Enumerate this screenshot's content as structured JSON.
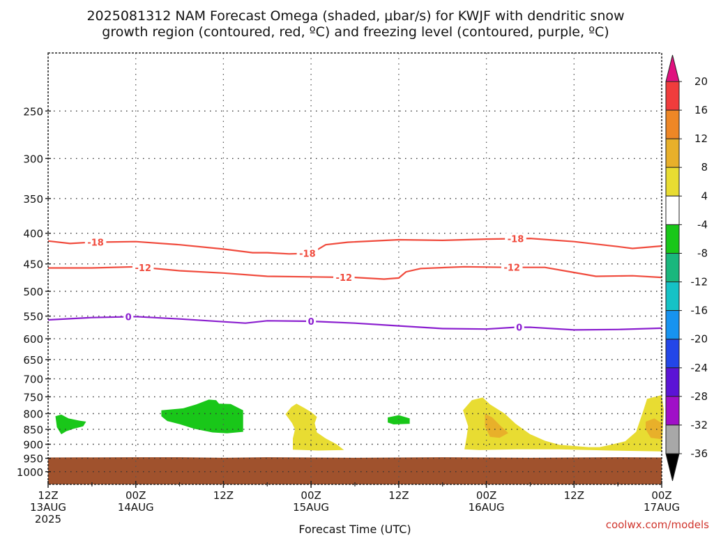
{
  "chart_data": {
    "type": "heatmap",
    "title_lines": [
      "2025081312 NAM Forecast Omega (shaded, μbar/s) for KWJF with dendritic snow",
      "growth region (contoured, red, ºC) and freezing level (contoured, purple, ºC)"
    ],
    "xlabel": "Forecast Time (UTC)",
    "credit": "coolwx.com/models",
    "x_unit": "hours after 2025-08-13 12Z",
    "xlim": [
      0,
      84
    ],
    "ylim": [
      1050,
      200
    ],
    "y_scale": "log",
    "x_ticks": [
      {
        "x": 0,
        "lines": [
          "12Z",
          "13AUG",
          "2025"
        ]
      },
      {
        "x": 12,
        "lines": [
          "00Z",
          "14AUG"
        ]
      },
      {
        "x": 24,
        "lines": [
          "12Z"
        ]
      },
      {
        "x": 36,
        "lines": [
          "00Z",
          "15AUG"
        ]
      },
      {
        "x": 48,
        "lines": [
          "12Z"
        ]
      },
      {
        "x": 60,
        "lines": [
          "00Z",
          "16AUG"
        ]
      },
      {
        "x": 72,
        "lines": [
          "12Z"
        ]
      },
      {
        "x": 84,
        "lines": [
          "00Z",
          "17AUG"
        ]
      }
    ],
    "x_minor_ticks": [
      6,
      18,
      30,
      42,
      54,
      66,
      78
    ],
    "y_ticks": [
      250,
      300,
      350,
      400,
      450,
      500,
      550,
      600,
      650,
      700,
      750,
      800,
      850,
      900,
      950,
      1000
    ],
    "grid": true,
    "colorbar": {
      "placement": "right",
      "labels": [
        "20",
        "16",
        "12",
        "8",
        "4",
        "-4",
        "-8",
        "-12",
        "-16",
        "-20",
        "-24",
        "-28",
        "-32",
        "-36"
      ],
      "bins": [
        {
          "from": 20,
          "to": null,
          "color": "#e0117f"
        },
        {
          "from": 16,
          "to": 20,
          "color": "#f03c3c"
        },
        {
          "from": 12,
          "to": 16,
          "color": "#ee8726"
        },
        {
          "from": 8,
          "to": 12,
          "color": "#e8b02a"
        },
        {
          "from": 4,
          "to": 8,
          "color": "#e8dc32"
        },
        {
          "from": -4,
          "to": 4,
          "color": "#ffffff"
        },
        {
          "from": -8,
          "to": -4,
          "color": "#19c719"
        },
        {
          "from": -12,
          "to": -8,
          "color": "#1ab77d"
        },
        {
          "from": -16,
          "to": -12,
          "color": "#15c2c6"
        },
        {
          "from": -20,
          "to": -16,
          "color": "#1793f0"
        },
        {
          "from": -24,
          "to": -20,
          "color": "#2346e8"
        },
        {
          "from": -28,
          "to": -24,
          "color": "#5b14d6"
        },
        {
          "from": -32,
          "to": -28,
          "color": "#a010c8"
        },
        {
          "from": -36,
          "to": -32,
          "color": "#a8a8a8"
        },
        {
          "from": null,
          "to": -36,
          "color": "#000000"
        }
      ]
    },
    "ground": {
      "color": "#a0522d",
      "top_p": [
        [
          0,
          947
        ],
        [
          12,
          946
        ],
        [
          18,
          946
        ],
        [
          24,
          948
        ],
        [
          30,
          946
        ],
        [
          36,
          947
        ],
        [
          42,
          948
        ],
        [
          48,
          947
        ],
        [
          54,
          946
        ],
        [
          60,
          947
        ],
        [
          66,
          948
        ],
        [
          72,
          947
        ],
        [
          78,
          946
        ],
        [
          84,
          947
        ]
      ]
    },
    "contours": [
      {
        "name": "-18",
        "kind": "dgz",
        "color": "#f04a3c",
        "label": "-18",
        "label_x": [
          6.5,
          35.5,
          64
        ],
        "points": [
          [
            0,
            412
          ],
          [
            3,
            416
          ],
          [
            6,
            414
          ],
          [
            12,
            413
          ],
          [
            18,
            418
          ],
          [
            24,
            425
          ],
          [
            28,
            431
          ],
          [
            30,
            431
          ],
          [
            33,
            433
          ],
          [
            36,
            432
          ],
          [
            37,
            425
          ],
          [
            38,
            418
          ],
          [
            41,
            414
          ],
          [
            48,
            410
          ],
          [
            54,
            411
          ],
          [
            60,
            409
          ],
          [
            66,
            408
          ],
          [
            72,
            413
          ],
          [
            78,
            421
          ],
          [
            80,
            424
          ],
          [
            84,
            420
          ]
        ]
      },
      {
        "name": "-12",
        "kind": "dgz",
        "color": "#f04a3c",
        "label": "-12",
        "label_x": [
          13,
          40.5,
          63.5
        ],
        "points": [
          [
            0,
            457
          ],
          [
            6,
            457
          ],
          [
            12,
            455
          ],
          [
            18,
            462
          ],
          [
            24,
            466
          ],
          [
            30,
            472
          ],
          [
            36,
            473
          ],
          [
            42,
            474
          ],
          [
            46,
            477
          ],
          [
            48,
            475
          ],
          [
            49,
            464
          ],
          [
            51,
            458
          ],
          [
            57,
            455
          ],
          [
            63,
            456
          ],
          [
            68,
            456
          ],
          [
            72,
            465
          ],
          [
            75,
            472
          ],
          [
            80,
            471
          ],
          [
            84,
            474
          ]
        ]
      },
      {
        "name": "0",
        "kind": "freezing",
        "color": "#8a1ecf",
        "label": "0",
        "label_x": [
          11,
          36,
          64.5
        ],
        "points": [
          [
            0,
            558
          ],
          [
            6,
            553
          ],
          [
            12,
            551
          ],
          [
            18,
            556
          ],
          [
            24,
            562
          ],
          [
            27,
            565
          ],
          [
            30,
            560
          ],
          [
            36,
            561
          ],
          [
            42,
            565
          ],
          [
            48,
            571
          ],
          [
            54,
            577
          ],
          [
            60,
            578
          ],
          [
            64,
            574
          ],
          [
            66,
            574
          ],
          [
            72,
            580
          ],
          [
            78,
            579
          ],
          [
            84,
            576
          ]
        ]
      }
    ],
    "omega_shaded": [
      {
        "value_bin": "-8 to -4",
        "color": "#19c719",
        "points": [
          [
            1,
            808
          ],
          [
            1.8,
            803
          ],
          [
            2.8,
            815
          ],
          [
            4.3,
            822
          ],
          [
            5.2,
            825
          ],
          [
            4.8,
            840
          ],
          [
            3.5,
            848
          ],
          [
            2.5,
            856
          ],
          [
            1.8,
            866
          ],
          [
            1.2,
            843
          ]
        ]
      },
      {
        "value_bin": "-8 to -4",
        "color": "#19c719",
        "points": [
          [
            15.5,
            790
          ],
          [
            18.5,
            784
          ],
          [
            20.3,
            772
          ],
          [
            22,
            758
          ],
          [
            23,
            760
          ],
          [
            23.4,
            770
          ],
          [
            25,
            771
          ],
          [
            26.7,
            790
          ],
          [
            26.7,
            858
          ],
          [
            24.5,
            863
          ],
          [
            22.5,
            860
          ],
          [
            20,
            848
          ],
          [
            18,
            833
          ],
          [
            16.3,
            823
          ],
          [
            15.5,
            808
          ]
        ]
      },
      {
        "value_bin": "-8 to -4",
        "color": "#19c719",
        "points": [
          [
            46.5,
            812
          ],
          [
            48,
            805
          ],
          [
            49.5,
            815
          ],
          [
            49.5,
            832
          ],
          [
            47.3,
            834
          ],
          [
            46.5,
            828
          ]
        ]
      },
      {
        "value_bin": "4 to 8",
        "color": "#e8dc32",
        "points": [
          [
            32.5,
            802
          ],
          [
            33.3,
            780
          ],
          [
            34,
            770
          ],
          [
            35,
            782
          ],
          [
            36,
            795
          ],
          [
            36.8,
            810
          ],
          [
            36.5,
            830
          ],
          [
            36.8,
            860
          ],
          [
            38,
            880
          ],
          [
            39.5,
            900
          ],
          [
            40.5,
            920
          ],
          [
            37,
            922
          ],
          [
            33.5,
            919
          ],
          [
            33.5,
            880
          ],
          [
            33.8,
            850
          ],
          [
            33.4,
            830
          ]
        ]
      },
      {
        "value_bin": "4 to 8",
        "color": "#e8dc32",
        "points": [
          [
            56.8,
            790
          ],
          [
            58,
            760
          ],
          [
            59.5,
            752
          ],
          [
            60.5,
            772
          ],
          [
            62.5,
            800
          ],
          [
            64,
            832
          ],
          [
            66,
            866
          ],
          [
            68,
            888
          ],
          [
            70,
            902
          ],
          [
            74,
            910
          ],
          [
            75.5,
            910
          ],
          [
            77,
            902
          ],
          [
            79,
            890
          ],
          [
            80.5,
            858
          ],
          [
            81.5,
            790
          ],
          [
            82,
            756
          ],
          [
            84,
            745
          ],
          [
            84.3,
            790
          ],
          [
            84,
            925
          ],
          [
            77,
            922
          ],
          [
            70,
            918
          ],
          [
            64,
            918
          ],
          [
            59,
            920
          ],
          [
            57,
            918
          ],
          [
            57.3,
            875
          ],
          [
            57.5,
            840
          ]
        ]
      },
      {
        "value_bin": "8 to 12",
        "color": "#e8b02a",
        "points": [
          [
            59.8,
            800
          ],
          [
            60.8,
            812
          ],
          [
            62,
            840
          ],
          [
            63,
            862
          ],
          [
            61.8,
            878
          ],
          [
            60.5,
            875
          ],
          [
            59.8,
            840
          ]
        ]
      },
      {
        "value_bin": "8 to 12",
        "color": "#e8b02a",
        "points": [
          [
            81.8,
            825
          ],
          [
            83,
            815
          ],
          [
            84,
            830
          ],
          [
            84,
            883
          ],
          [
            82.5,
            878
          ],
          [
            81.8,
            850
          ]
        ]
      }
    ]
  }
}
